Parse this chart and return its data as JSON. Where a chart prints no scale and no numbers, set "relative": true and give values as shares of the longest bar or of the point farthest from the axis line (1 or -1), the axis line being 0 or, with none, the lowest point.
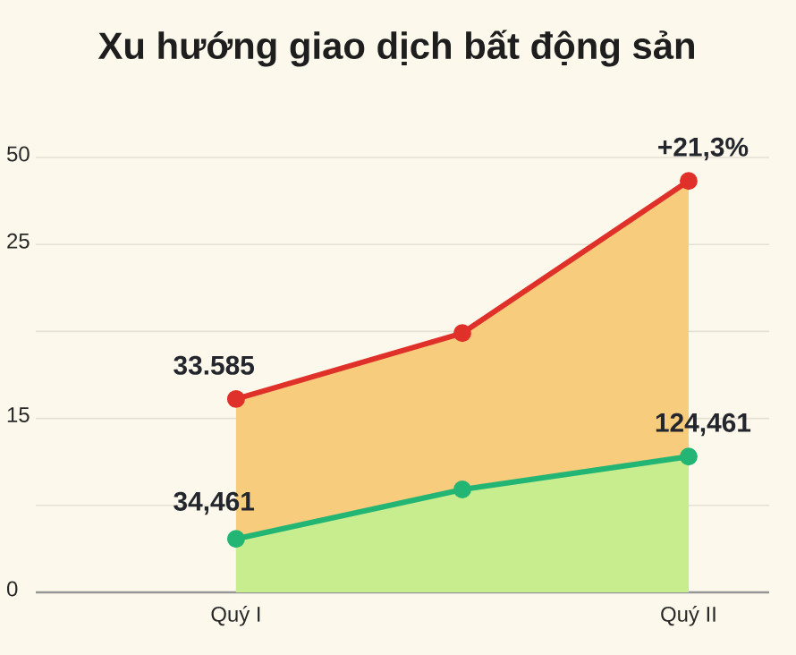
{
  "chart_data": {
    "type": "area",
    "title": "Xu hướng giao dịch bất động sản",
    "categories": [
      "Quý I",
      null,
      "Quý II"
    ],
    "relative": true,
    "series": [
      {
        "color": "#e0302a",
        "values": [
          0.47,
          0.63,
          1
        ]
      },
      {
        "color": "#22b573",
        "values": [
          0.13,
          0.25,
          0.33
        ]
      }
    ],
    "grid": "y",
    "marker": "circle",
    "line_style": "solid",
    "annotations": [
      "0",
      "15",
      "25",
      "50",
      {
        "text": "33.585",
        "x": "Quý I",
        "y": 0.47
      },
      {
        "text": "34,461",
        "x": "Quý I",
        "y": 0.13
      },
      {
        "text": "124,461",
        "x": "Quý II",
        "y": 0.33
      },
      {
        "text": "+21,3%",
        "x": "Quý II",
        "y": 1
      }
    ]
  }
}
